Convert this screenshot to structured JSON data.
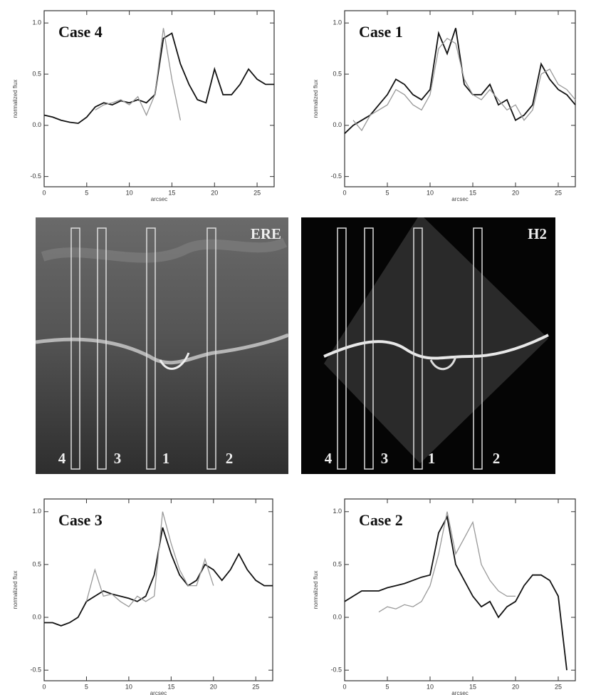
{
  "chart_data": [
    {
      "type": "line",
      "title": "Case 4",
      "xlabel": "arcsec",
      "ylabel": "normalized flux",
      "x": [
        0,
        1,
        2,
        3,
        4,
        5,
        6,
        7,
        8,
        9,
        10,
        11,
        12,
        13,
        14,
        15,
        16,
        17,
        18,
        19,
        20,
        21,
        22,
        23,
        24,
        25,
        26,
        27
      ],
      "series": [
        {
          "color": "#111111",
          "values": [
            0.1,
            0.08,
            0.05,
            0.03,
            0.02,
            0.08,
            0.18,
            0.22,
            0.2,
            0.24,
            0.22,
            0.25,
            0.22,
            0.3,
            0.85,
            0.9,
            0.6,
            0.4,
            0.25,
            0.22,
            0.55,
            0.3,
            0.3,
            0.4,
            0.55,
            0.45,
            0.4,
            0.4
          ]
        },
        {
          "color": "#999999",
          "values": [
            null,
            null,
            null,
            null,
            null,
            null,
            0.15,
            0.2,
            0.22,
            0.25,
            0.2,
            0.28,
            0.1,
            0.3,
            0.95,
            0.45,
            0.05,
            null,
            null,
            null,
            null,
            null,
            null,
            null,
            null,
            null,
            null,
            null
          ]
        }
      ],
      "xlim": [
        0,
        27
      ],
      "ylim": [
        -0.6,
        1.12
      ],
      "xticks": [
        0,
        5,
        10,
        15,
        20,
        25
      ],
      "yticks": [
        {
          "value": -0.5,
          "label": "-0.5"
        },
        {
          "value": 0,
          "label": "0.0"
        },
        {
          "value": 0.5,
          "label": "0.5"
        },
        {
          "value": 1,
          "label": "1.0"
        }
      ]
    },
    {
      "type": "line",
      "title": "Case 1",
      "xlabel": "arcsec",
      "ylabel": "normalized flux",
      "x": [
        0,
        1,
        2,
        3,
        4,
        5,
        6,
        7,
        8,
        9,
        10,
        11,
        12,
        13,
        14,
        15,
        16,
        17,
        18,
        19,
        20,
        21,
        22,
        23,
        24,
        25,
        26,
        27
      ],
      "series": [
        {
          "color": "#111111",
          "values": [
            -0.08,
            0.0,
            0.05,
            0.1,
            0.2,
            0.3,
            0.45,
            0.4,
            0.3,
            0.25,
            0.35,
            0.9,
            0.7,
            0.95,
            0.4,
            0.3,
            0.3,
            0.4,
            0.2,
            0.25,
            0.05,
            0.1,
            0.2,
            0.6,
            0.45,
            0.35,
            0.3,
            0.2
          ]
        },
        {
          "color": "#999999",
          "values": [
            null,
            0.05,
            -0.05,
            0.1,
            0.15,
            0.2,
            0.35,
            0.3,
            0.2,
            0.15,
            0.3,
            0.75,
            0.85,
            0.8,
            0.45,
            0.3,
            0.25,
            0.35,
            0.25,
            0.15,
            0.2,
            0.05,
            0.15,
            0.5,
            0.55,
            0.4,
            0.35,
            0.25
          ]
        }
      ],
      "xlim": [
        0,
        27
      ],
      "ylim": [
        -0.6,
        1.12
      ],
      "xticks": [
        0,
        5,
        10,
        15,
        20,
        25
      ],
      "yticks": [
        {
          "value": -0.5,
          "label": "-0.5"
        },
        {
          "value": 0,
          "label": "0.0"
        },
        {
          "value": 0.5,
          "label": "0.5"
        },
        {
          "value": 1,
          "label": "1.0"
        }
      ]
    },
    {
      "type": "line",
      "title": "Case 3",
      "xlabel": "arcsec",
      "ylabel": "normalized flux",
      "x": [
        0,
        1,
        2,
        3,
        4,
        5,
        6,
        7,
        8,
        9,
        10,
        11,
        12,
        13,
        14,
        15,
        16,
        17,
        18,
        19,
        20,
        21,
        22,
        23,
        24,
        25,
        26,
        27
      ],
      "series": [
        {
          "color": "#111111",
          "values": [
            -0.05,
            -0.05,
            -0.08,
            -0.05,
            0.0,
            0.15,
            0.2,
            0.25,
            0.22,
            0.2,
            0.18,
            0.15,
            0.2,
            0.4,
            0.85,
            0.6,
            0.4,
            0.3,
            0.35,
            0.5,
            0.45,
            0.35,
            0.45,
            0.6,
            0.45,
            0.35,
            0.3,
            0.3
          ]
        },
        {
          "color": "#999999",
          "values": [
            null,
            null,
            null,
            null,
            null,
            0.15,
            0.45,
            0.2,
            0.22,
            0.15,
            0.1,
            0.2,
            0.15,
            0.2,
            1.0,
            0.7,
            0.45,
            0.3,
            0.3,
            0.55,
            0.3,
            null,
            null,
            null,
            null,
            null,
            null,
            null
          ]
        }
      ],
      "xlim": [
        0,
        27
      ],
      "ylim": [
        -0.6,
        1.12
      ],
      "xticks": [
        0,
        5,
        10,
        15,
        20,
        25
      ],
      "yticks": [
        {
          "value": -0.5,
          "label": "-0.5"
        },
        {
          "value": 0,
          "label": "0.0"
        },
        {
          "value": 0.5,
          "label": "0.5"
        },
        {
          "value": 1,
          "label": "1.0"
        }
      ]
    },
    {
      "type": "line",
      "title": "Case 2",
      "xlabel": "arcsec",
      "ylabel": "normalized flux",
      "x": [
        0,
        1,
        2,
        3,
        4,
        5,
        6,
        7,
        8,
        9,
        10,
        11,
        12,
        13,
        14,
        15,
        16,
        17,
        18,
        19,
        20,
        21,
        22,
        23,
        24,
        25,
        26,
        27
      ],
      "series": [
        {
          "color": "#111111",
          "values": [
            0.15,
            0.2,
            0.25,
            0.25,
            0.25,
            0.28,
            0.3,
            0.32,
            0.35,
            0.38,
            0.4,
            0.8,
            0.95,
            0.5,
            0.35,
            0.2,
            0.1,
            0.15,
            0.0,
            0.1,
            0.15,
            0.3,
            0.4,
            0.4,
            0.35,
            0.2,
            -0.5,
            null
          ]
        },
        {
          "color": "#999999",
          "values": [
            null,
            null,
            null,
            null,
            0.05,
            0.1,
            0.08,
            0.12,
            0.1,
            0.15,
            0.3,
            0.6,
            1.0,
            0.6,
            0.75,
            0.9,
            0.5,
            0.35,
            0.25,
            0.2,
            0.2,
            null,
            null,
            null,
            null,
            null,
            null,
            null
          ]
        }
      ],
      "xlim": [
        0,
        27
      ],
      "ylim": [
        -0.6,
        1.12
      ],
      "xticks": [
        0,
        5,
        10,
        15,
        20,
        25
      ],
      "yticks": [
        {
          "value": -0.5,
          "label": "-0.5"
        },
        {
          "value": 0,
          "label": "0.0"
        },
        {
          "value": 0.5,
          "label": "0.5"
        },
        {
          "value": 1,
          "label": "1.0"
        }
      ]
    }
  ],
  "images": [
    {
      "label": "ERE",
      "boxes": [
        "4",
        "3",
        "1",
        "2"
      ]
    },
    {
      "label": "H2",
      "boxes": [
        "4",
        "3",
        "1",
        "2"
      ]
    }
  ]
}
